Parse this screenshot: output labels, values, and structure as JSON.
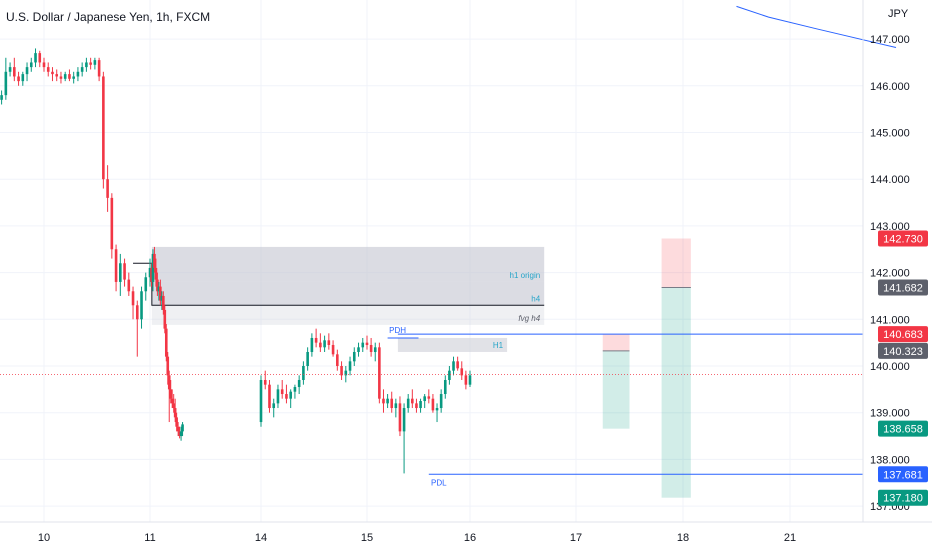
{
  "chart_data": {
    "type": "candlestick",
    "title": "U.S. Dollar / Japanese Yen, 1h, FXCM",
    "currency": "JPY",
    "y_ticks": [
      {
        "value": 147.0,
        "label": "147.000"
      },
      {
        "value": 146.0,
        "label": "146.000"
      },
      {
        "value": 145.0,
        "label": "145.000"
      },
      {
        "value": 144.0,
        "label": "144.000"
      },
      {
        "value": 143.0,
        "label": "143.000"
      },
      {
        "value": 142.0,
        "label": "142.000"
      },
      {
        "value": 141.0,
        "label": "141.000"
      },
      {
        "value": 140.0,
        "label": "140.000"
      },
      {
        "value": 139.0,
        "label": "139.000"
      },
      {
        "value": 138.0,
        "label": "138.000"
      },
      {
        "value": 137.0,
        "label": "137.000"
      }
    ],
    "x_ticks": [
      {
        "day": 10.0,
        "label": "10"
      },
      {
        "day": 11.0,
        "label": "11"
      },
      {
        "day": 14.0,
        "label": "14"
      },
      {
        "day": 15.0,
        "label": "15"
      },
      {
        "day": 16.0,
        "label": "16"
      },
      {
        "day": 17.0,
        "label": "17"
      },
      {
        "day": 18.0,
        "label": "18"
      },
      {
        "day": 21.0,
        "label": "21"
      }
    ],
    "price_badges": [
      {
        "value": 142.73,
        "label": "142.730",
        "color": "#f23645"
      },
      {
        "value": 141.682,
        "label": "141.682",
        "color": "#5d606b"
      },
      {
        "value": 140.683,
        "label": "140.683",
        "color": "#f23645"
      },
      {
        "value": 140.323,
        "label": "140.323",
        "color": "#5d606b"
      },
      {
        "value": 138.658,
        "label": "138.658",
        "color": "#089981"
      },
      {
        "value": 137.681,
        "label": "137.681",
        "color": "#2962ff"
      },
      {
        "value": 137.18,
        "label": "137.180",
        "color": "#089981"
      }
    ],
    "current_price": 139.82,
    "zones": [
      {
        "name": "h1 origin",
        "day_start": 11.05,
        "day_end": 16.7,
        "y_top": 142.55,
        "y_bottom": 141.8,
        "label_color": "#26a5c9"
      },
      {
        "name": "h4",
        "day_start": 11.05,
        "day_end": 16.7,
        "y_top": 141.8,
        "y_bottom": 141.3,
        "label_color": "#26a5c9"
      },
      {
        "name": "fvg h4",
        "day_start": 11.05,
        "day_end": 16.7,
        "y_top": 141.3,
        "y_bottom": 140.88,
        "label_color": "#5d606b"
      },
      {
        "name": "H1",
        "day_start": 15.3,
        "day_end": 16.35,
        "y_top": 140.6,
        "y_bottom": 140.3,
        "label_color": "#26a5c9"
      }
    ],
    "levels": [
      {
        "name": "PDH",
        "value": 140.6,
        "day_start": 15.2,
        "day_end": 15.5,
        "color": "#2962ff"
      },
      {
        "name": "PDL",
        "value": 137.681,
        "day_start": 15.6,
        "day_end": 20.0,
        "color": "#2962ff"
      },
      {
        "name": "",
        "value": 140.683,
        "day_start": 15.3,
        "day_end": 20.0,
        "color": "#2962ff"
      }
    ],
    "positions": [
      {
        "type": "short",
        "day_start": 17.25,
        "day_end": 17.5,
        "entry": 140.323,
        "stop": 140.683,
        "target": 138.658
      },
      {
        "type": "short",
        "day_start": 17.8,
        "day_end": 18.22,
        "entry": 141.682,
        "stop": 142.73,
        "target": 137.18
      }
    ],
    "trend_curve": [
      {
        "day": 19.5,
        "value": 147.7
      },
      {
        "day": 20.4,
        "value": 147.47
      },
      {
        "day": 21.25,
        "value": 147.22
      },
      {
        "day": 22.0,
        "value": 146.82
      }
    ],
    "candles": [
      [
        9.6,
        145.7,
        145.9,
        145.6,
        145.8
      ],
      [
        9.64,
        145.8,
        146.6,
        145.7,
        146.3
      ],
      [
        9.68,
        146.3,
        146.5,
        146.2,
        146.4
      ],
      [
        9.72,
        146.4,
        146.6,
        146.1,
        146.2
      ],
      [
        9.76,
        146.2,
        146.3,
        146.0,
        146.1
      ],
      [
        9.8,
        146.1,
        146.3,
        146.0,
        146.25
      ],
      [
        9.84,
        146.25,
        146.5,
        146.1,
        146.4
      ],
      [
        9.88,
        146.4,
        146.6,
        146.3,
        146.5
      ],
      [
        9.92,
        146.5,
        146.8,
        146.4,
        146.7
      ],
      [
        9.96,
        146.7,
        146.75,
        146.4,
        146.5
      ],
      [
        10.0,
        146.5,
        146.6,
        146.3,
        146.4
      ],
      [
        10.04,
        146.4,
        146.5,
        146.2,
        146.3
      ],
      [
        10.08,
        146.3,
        146.4,
        146.1,
        146.25
      ],
      [
        10.12,
        146.25,
        146.35,
        146.1,
        146.2
      ],
      [
        10.16,
        146.2,
        146.3,
        146.05,
        146.15
      ],
      [
        10.2,
        146.15,
        146.3,
        146.1,
        146.25
      ],
      [
        10.24,
        146.25,
        146.35,
        146.1,
        146.15
      ],
      [
        10.28,
        146.15,
        146.3,
        146.05,
        146.2
      ],
      [
        10.32,
        146.2,
        146.4,
        146.1,
        146.3
      ],
      [
        10.36,
        146.3,
        146.5,
        146.2,
        146.4
      ],
      [
        10.4,
        146.4,
        146.6,
        146.3,
        146.5
      ],
      [
        10.44,
        146.5,
        146.6,
        146.35,
        146.45
      ],
      [
        10.48,
        146.45,
        146.6,
        146.35,
        146.55
      ],
      [
        10.52,
        146.55,
        146.6,
        146.1,
        146.2
      ],
      [
        10.56,
        146.2,
        146.3,
        143.8,
        144.0
      ],
      [
        10.6,
        144.0,
        144.3,
        143.3,
        143.6
      ],
      [
        10.64,
        143.6,
        143.7,
        142.3,
        142.5
      ],
      [
        10.68,
        142.5,
        142.6,
        141.6,
        141.8
      ],
      [
        10.72,
        141.8,
        142.4,
        141.5,
        142.2
      ],
      [
        10.76,
        142.2,
        142.3,
        141.7,
        141.85
      ],
      [
        10.8,
        141.85,
        142.0,
        141.5,
        141.6
      ],
      [
        10.84,
        141.6,
        141.7,
        141.0,
        141.3
      ],
      [
        10.88,
        141.3,
        141.4,
        140.2,
        141.0
      ],
      [
        10.92,
        141.0,
        141.7,
        140.8,
        141.6
      ],
      [
        10.96,
        141.6,
        142.0,
        141.4,
        141.9
      ],
      [
        11.0,
        141.9,
        142.3,
        141.7,
        142.1
      ],
      [
        11.04,
        142.1,
        142.2,
        141.7,
        141.8
      ],
      [
        11.08,
        141.8,
        142.5,
        141.6,
        142.4
      ],
      [
        11.12,
        142.4,
        142.55,
        142.0,
        142.1
      ],
      [
        11.16,
        142.1,
        142.3,
        141.7,
        141.85
      ],
      [
        11.2,
        141.85,
        142.0,
        141.5,
        141.6
      ],
      [
        11.24,
        141.6,
        141.8,
        141.4,
        141.7
      ],
      [
        11.28,
        141.7,
        141.85,
        141.3,
        141.4
      ],
      [
        11.32,
        141.4,
        141.6,
        141.2,
        141.5
      ],
      [
        11.36,
        141.5,
        141.6,
        141.1,
        141.2
      ],
      [
        11.4,
        141.2,
        141.3,
        140.7,
        140.8
      ],
      [
        11.44,
        140.8,
        140.9,
        140.1,
        140.2
      ],
      [
        11.48,
        140.2,
        140.3,
        139.6,
        139.8
      ],
      [
        11.52,
        139.8,
        139.9,
        138.8,
        139.5
      ],
      [
        11.56,
        139.5,
        139.7,
        139.2,
        139.3
      ],
      [
        11.6,
        139.3,
        139.5,
        139.1,
        139.2
      ],
      [
        11.64,
        139.2,
        139.4,
        139.0,
        139.1
      ],
      [
        11.68,
        139.1,
        139.3,
        138.8,
        138.9
      ],
      [
        11.72,
        138.9,
        139.0,
        138.6,
        138.7
      ],
      [
        11.76,
        138.7,
        138.8,
        138.5,
        138.6
      ],
      [
        11.8,
        138.6,
        138.7,
        138.45,
        138.5
      ],
      [
        11.84,
        138.5,
        138.7,
        138.4,
        138.6
      ],
      [
        11.88,
        138.6,
        138.8,
        138.5,
        138.75
      ],
      [
        14.0,
        138.8,
        139.8,
        138.7,
        139.7
      ],
      [
        14.04,
        139.7,
        139.9,
        139.5,
        139.6
      ],
      [
        14.08,
        139.6,
        139.7,
        139.0,
        139.1
      ],
      [
        14.12,
        139.1,
        139.3,
        138.9,
        139.2
      ],
      [
        14.16,
        139.2,
        139.6,
        139.1,
        139.5
      ],
      [
        14.2,
        139.5,
        139.7,
        139.3,
        139.4
      ],
      [
        14.24,
        139.4,
        139.6,
        139.2,
        139.3
      ],
      [
        14.28,
        139.3,
        139.5,
        139.1,
        139.45
      ],
      [
        14.32,
        139.45,
        139.6,
        139.3,
        139.55
      ],
      [
        14.36,
        139.55,
        139.8,
        139.4,
        139.7
      ],
      [
        14.4,
        139.7,
        140.1,
        139.6,
        140.0
      ],
      [
        14.44,
        140.0,
        140.4,
        139.9,
        140.3
      ],
      [
        14.48,
        140.3,
        140.7,
        140.2,
        140.6
      ],
      [
        14.52,
        140.6,
        140.8,
        140.4,
        140.5
      ],
      [
        14.56,
        140.5,
        140.7,
        140.3,
        140.4
      ],
      [
        14.6,
        140.4,
        140.65,
        140.3,
        140.55
      ],
      [
        14.64,
        140.55,
        140.7,
        140.35,
        140.45
      ],
      [
        14.68,
        140.45,
        140.55,
        140.2,
        140.25
      ],
      [
        14.72,
        140.25,
        140.35,
        139.9,
        140.0
      ],
      [
        14.76,
        140.0,
        140.1,
        139.7,
        139.8
      ],
      [
        14.8,
        139.8,
        140.0,
        139.65,
        139.9
      ],
      [
        14.84,
        139.9,
        140.2,
        139.8,
        140.1
      ],
      [
        14.88,
        140.1,
        140.4,
        140.0,
        140.3
      ],
      [
        14.92,
        140.3,
        140.5,
        140.2,
        140.4
      ],
      [
        14.96,
        140.4,
        140.6,
        140.3,
        140.5
      ],
      [
        15.0,
        140.5,
        140.65,
        140.35,
        140.45
      ],
      [
        15.04,
        140.45,
        140.6,
        140.2,
        140.3
      ],
      [
        15.08,
        140.3,
        140.5,
        140.1,
        140.4
      ],
      [
        15.12,
        140.4,
        140.5,
        139.2,
        139.3
      ],
      [
        15.16,
        139.3,
        139.5,
        139.0,
        139.2
      ],
      [
        15.2,
        139.2,
        139.4,
        139.1,
        139.3
      ],
      [
        15.24,
        139.3,
        139.45,
        139.0,
        139.1
      ],
      [
        15.28,
        139.1,
        139.3,
        138.9,
        139.2
      ],
      [
        15.32,
        139.2,
        139.35,
        138.5,
        138.6
      ],
      [
        15.36,
        138.6,
        139.2,
        137.7,
        139.1
      ],
      [
        15.4,
        139.1,
        139.4,
        139.0,
        139.3
      ],
      [
        15.44,
        139.3,
        139.5,
        139.1,
        139.2
      ],
      [
        15.48,
        139.2,
        139.3,
        139.0,
        139.1
      ],
      [
        15.52,
        139.1,
        139.3,
        139.0,
        139.25
      ],
      [
        15.56,
        139.25,
        139.4,
        139.1,
        139.35
      ],
      [
        15.6,
        139.35,
        139.5,
        139.2,
        139.3
      ],
      [
        15.64,
        139.3,
        139.4,
        139.0,
        139.05
      ],
      [
        15.68,
        139.05,
        139.2,
        138.8,
        139.1
      ],
      [
        15.72,
        139.1,
        139.5,
        139.0,
        139.4
      ],
      [
        15.76,
        139.4,
        139.8,
        139.3,
        139.7
      ],
      [
        15.8,
        139.7,
        140.0,
        139.6,
        139.9
      ],
      [
        15.84,
        139.9,
        140.2,
        139.8,
        140.1
      ],
      [
        15.88,
        140.1,
        140.2,
        139.9,
        139.95
      ],
      [
        15.92,
        139.95,
        140.1,
        139.7,
        139.8
      ],
      [
        15.96,
        139.8,
        139.9,
        139.5,
        139.6
      ],
      [
        16.0,
        139.6,
        139.9,
        139.55,
        139.8
      ]
    ]
  }
}
